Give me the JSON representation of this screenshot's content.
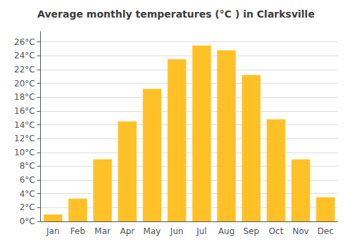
{
  "chart_data": {
    "type": "bar",
    "title": "Average monthly temperatures (°C ) in Clarksville",
    "categories": [
      "Jan",
      "Feb",
      "Mar",
      "Apr",
      "May",
      "Jun",
      "Jul",
      "Aug",
      "Sep",
      "Oct",
      "Nov",
      "Dec"
    ],
    "values": [
      1.0,
      3.3,
      9.0,
      14.5,
      19.2,
      23.5,
      25.5,
      24.8,
      21.2,
      14.8,
      9.0,
      3.5
    ],
    "color": "#FFC125",
    "ylim": [
      0,
      27.5
    ],
    "yticks": [
      {
        "value": 0,
        "label": "0°C"
      },
      {
        "value": 2,
        "label": "2°C"
      },
      {
        "value": 4,
        "label": "4°C"
      },
      {
        "value": 6,
        "label": "6°C"
      },
      {
        "value": 8,
        "label": "8°C"
      },
      {
        "value": 10,
        "label": "10°C"
      },
      {
        "value": 12,
        "label": "12°C"
      },
      {
        "value": 14,
        "label": "14°C"
      },
      {
        "value": 16,
        "label": "16°C"
      },
      {
        "value": 18,
        "label": "18°C"
      },
      {
        "value": 20,
        "label": "20°C"
      },
      {
        "value": 22,
        "label": "22°C"
      },
      {
        "value": 24,
        "label": "24°C"
      },
      {
        "value": 26,
        "label": "26°C"
      }
    ],
    "grid": true
  }
}
